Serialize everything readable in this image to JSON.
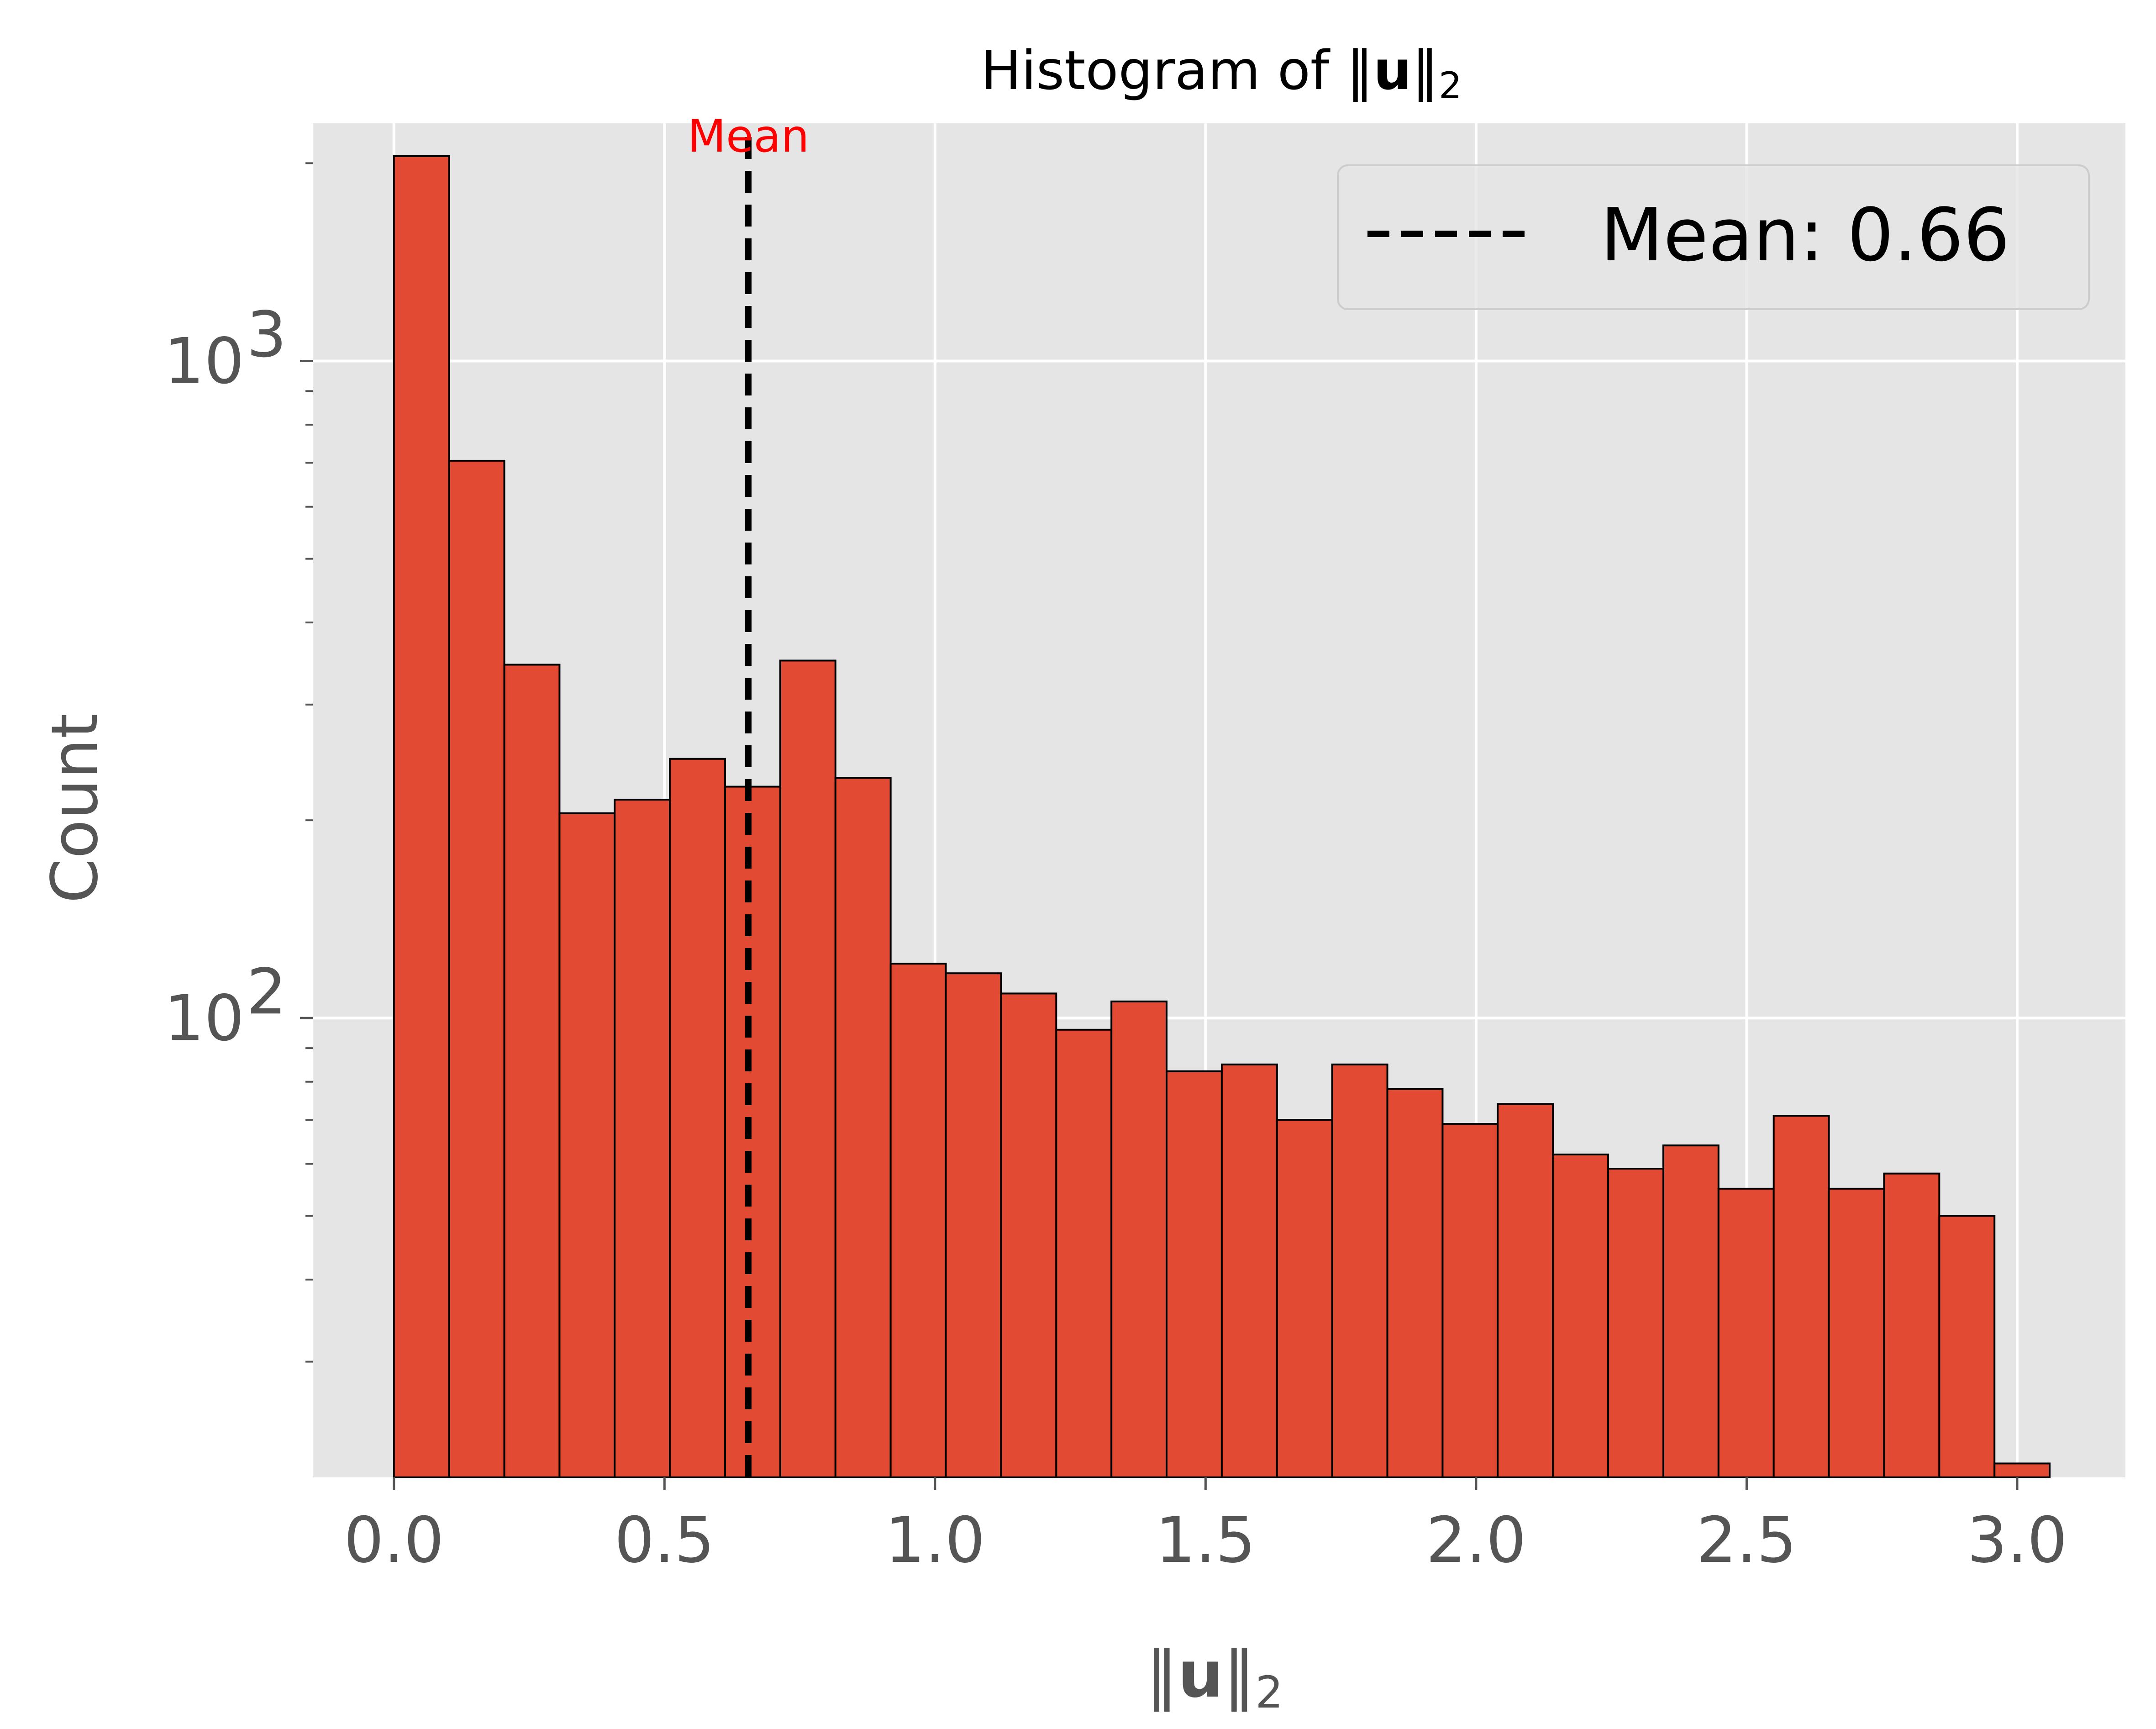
{
  "chart_data": {
    "type": "bar",
    "title": "Histogram of ‖u‖₂",
    "xlabel": "‖u‖₂",
    "ylabel": "Count",
    "yscale": "log",
    "xlim": [
      -0.15,
      3.2
    ],
    "ylim": [
      20,
      2300
    ],
    "grid": true,
    "legend_placement": "top-right",
    "bar_color": "#e24a33",
    "bar_edge_color": "#000000",
    "background_color": "#e5e5e5",
    "bin_width": 0.102,
    "bin_edges_start": 0.0,
    "values": [
      2050,
      705,
      345,
      205,
      215,
      248,
      225,
      350,
      232,
      121,
      117,
      109,
      96,
      106,
      83,
      85,
      70,
      85,
      78,
      69,
      74,
      62,
      59,
      64,
      55,
      71,
      55,
      58,
      50,
      21
    ],
    "x_ticks": [
      "0.0",
      "0.5",
      "1.0",
      "1.5",
      "2.0",
      "2.5",
      "3.0"
    ],
    "x_tick_values": [
      0.0,
      0.5,
      1.0,
      1.5,
      2.0,
      2.5,
      3.0
    ],
    "y_ticks": [
      {
        "value": 100,
        "base": "10",
        "exp": "2"
      },
      {
        "value": 1000,
        "base": "10",
        "exp": "3"
      }
    ],
    "mean": {
      "value": 0.655,
      "label": "Mean",
      "legend": "Mean: 0.66",
      "line_color": "#000000",
      "label_color": "#ff0000"
    }
  }
}
